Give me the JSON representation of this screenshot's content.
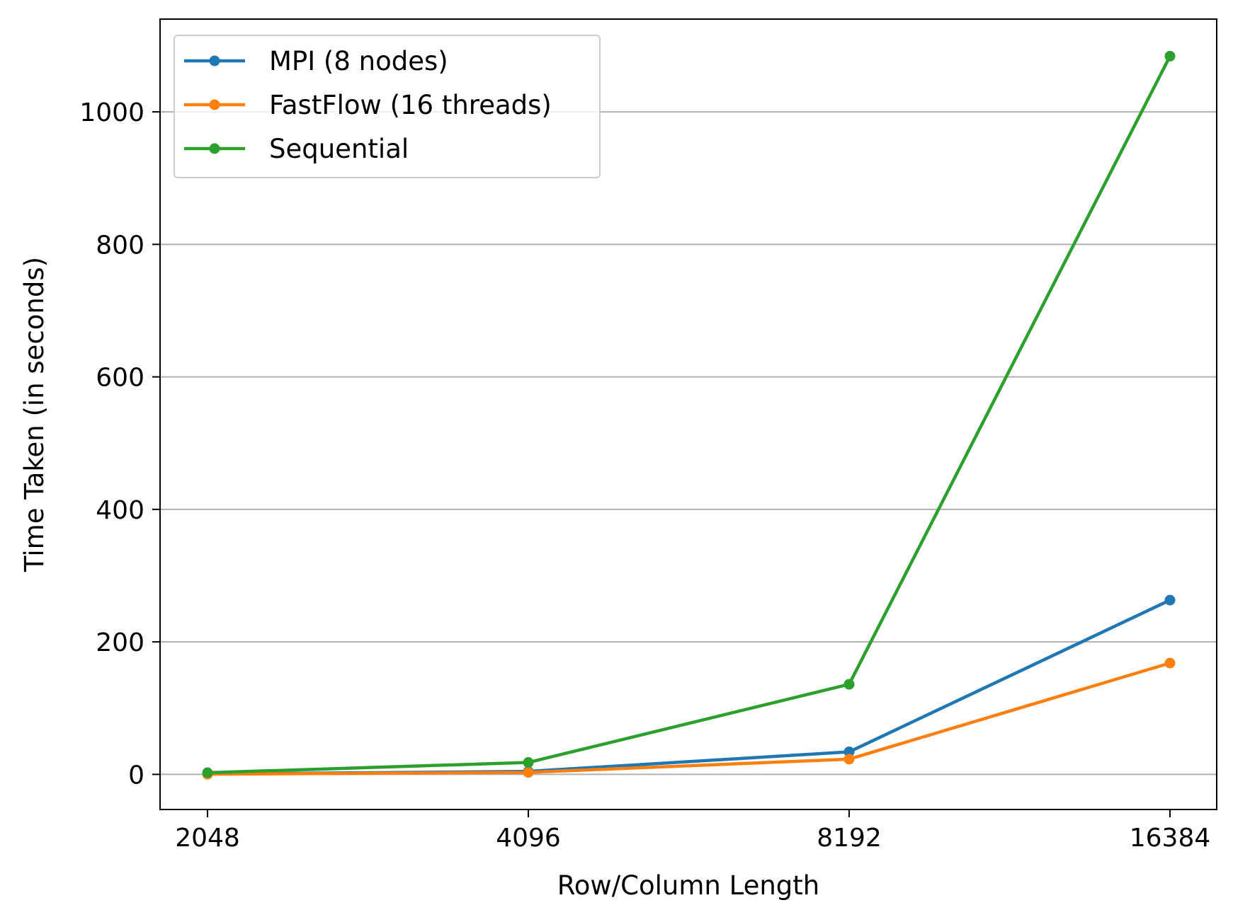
{
  "chart_data": {
    "type": "line",
    "title": "",
    "xlabel": "Row/Column Length",
    "ylabel": "Time Taken (in seconds)",
    "categories": [
      "2048",
      "4096",
      "8192",
      "16384"
    ],
    "ylim": [
      -53,
      1140
    ],
    "yticks": [
      0,
      200,
      400,
      600,
      800,
      1000
    ],
    "y_grid": true,
    "x_grid": false,
    "legend_position": "top-left",
    "series": [
      {
        "name": "MPI (8 nodes)",
        "color": "#1f77b4",
        "values": [
          0.5,
          4.5,
          34,
          263
        ]
      },
      {
        "name": "FastFlow (16 threads)",
        "color": "#ff7f0e",
        "values": [
          0.3,
          3,
          23,
          168
        ]
      },
      {
        "name": "Sequential",
        "color": "#2ca02c",
        "values": [
          2.5,
          18,
          136,
          1084
        ]
      }
    ]
  }
}
